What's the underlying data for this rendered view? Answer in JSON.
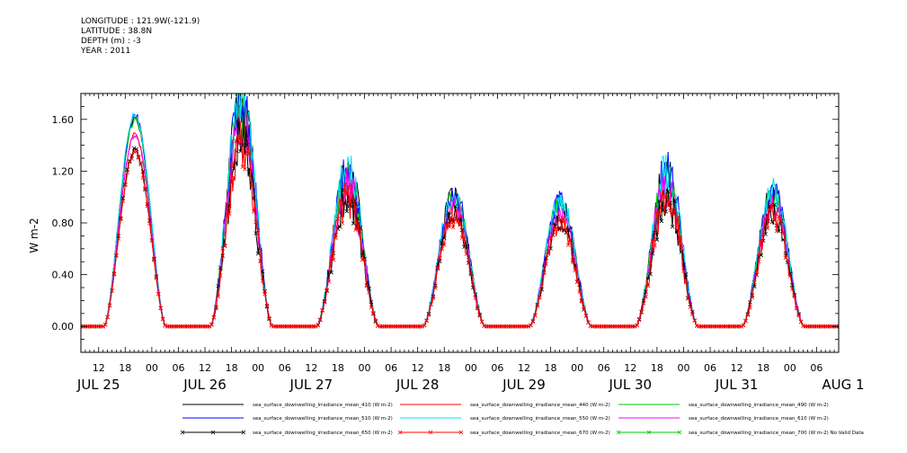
{
  "header": {
    "longitude": "LONGITUDE : 121.9W(-121.9)",
    "latitude": "LATITUDE : 38.8N",
    "depth": "DEPTH (m) : -3",
    "year": "YEAR : 2011"
  },
  "chart_data": {
    "type": "line",
    "title": "",
    "ylabel": "W m-2",
    "xlabel": "",
    "ylim": [
      -0.2,
      1.8
    ],
    "xlim": [
      "2011-07-25T08:00",
      "2011-08-01T11:00"
    ],
    "y_ticks": [
      "0.00",
      "0.40",
      "0.80",
      "1.20",
      "1.60"
    ],
    "y_tick_values": [
      0.0,
      0.4,
      0.8,
      1.2,
      1.6
    ],
    "x_hour_labels": [
      {
        "t": "2011-07-25T12:00",
        "label": "12"
      },
      {
        "t": "2011-07-25T18:00",
        "label": "18"
      },
      {
        "t": "2011-07-26T00:00",
        "label": "00"
      },
      {
        "t": "2011-07-26T06:00",
        "label": "06"
      },
      {
        "t": "2011-07-26T12:00",
        "label": "12"
      },
      {
        "t": "2011-07-26T18:00",
        "label": "18"
      },
      {
        "t": "2011-07-27T00:00",
        "label": "00"
      },
      {
        "t": "2011-07-27T06:00",
        "label": "06"
      },
      {
        "t": "2011-07-27T12:00",
        "label": "12"
      },
      {
        "t": "2011-07-27T18:00",
        "label": "18"
      },
      {
        "t": "2011-07-28T00:00",
        "label": "00"
      },
      {
        "t": "2011-07-28T06:00",
        "label": "06"
      },
      {
        "t": "2011-07-28T12:00",
        "label": "12"
      },
      {
        "t": "2011-07-28T18:00",
        "label": "18"
      },
      {
        "t": "2011-07-29T00:00",
        "label": "00"
      },
      {
        "t": "2011-07-29T06:00",
        "label": "06"
      },
      {
        "t": "2011-07-29T12:00",
        "label": "12"
      },
      {
        "t": "2011-07-29T18:00",
        "label": "18"
      },
      {
        "t": "2011-07-30T00:00",
        "label": "00"
      },
      {
        "t": "2011-07-30T06:00",
        "label": "06"
      },
      {
        "t": "2011-07-30T12:00",
        "label": "12"
      },
      {
        "t": "2011-07-30T18:00",
        "label": "18"
      },
      {
        "t": "2011-07-31T00:00",
        "label": "00"
      },
      {
        "t": "2011-07-31T06:00",
        "label": "06"
      },
      {
        "t": "2011-07-31T12:00",
        "label": "12"
      },
      {
        "t": "2011-07-31T18:00",
        "label": "18"
      },
      {
        "t": "2011-08-01T00:00",
        "label": "00"
      },
      {
        "t": "2011-08-01T06:00",
        "label": "06"
      }
    ],
    "x_day_labels": [
      {
        "t": "2011-07-25T12:00",
        "label": "JUL 25"
      },
      {
        "t": "2011-07-26T12:00",
        "label": "JUL 26"
      },
      {
        "t": "2011-07-27T12:00",
        "label": "JUL 27"
      },
      {
        "t": "2011-07-28T12:00",
        "label": "JUL 28"
      },
      {
        "t": "2011-07-29T12:00",
        "label": "JUL 29"
      },
      {
        "t": "2011-07-30T12:00",
        "label": "JUL 30"
      },
      {
        "t": "2011-07-31T12:00",
        "label": "JUL 31"
      },
      {
        "t": "2011-08-01T12:00",
        "label": "AUG 1"
      }
    ],
    "days": [
      "2011-07-25",
      "2011-07-26",
      "2011-07-27",
      "2011-07-28",
      "2011-07-29",
      "2011-07-30",
      "2011-07-31"
    ],
    "day_peaks_550nm": [
      1.64,
      1.72,
      1.2,
      1.03,
      0.97,
      1.18,
      1.04
    ],
    "day_noise": [
      0.01,
      0.09,
      0.09,
      0.06,
      0.06,
      0.1,
      0.07
    ],
    "series": [
      {
        "name": "sea_surface_downwelling_irradiance_mean_410 (W m-2)",
        "color": "#000000",
        "scale": 0.98,
        "marker": false
      },
      {
        "name": "sea_surface_downwelling_irradiance_mean_440 (W m-2)",
        "color": "#ff0000",
        "scale": 0.9,
        "marker": false
      },
      {
        "name": "sea_surface_downwelling_irradiance_mean_490 (W m-2)",
        "color": "#00c800",
        "scale": 0.97,
        "marker": false
      },
      {
        "name": "sea_surface_downwelling_irradiance_mean_510 (W m-2)",
        "color": "#0000ff",
        "scale": 0.995,
        "marker": false
      },
      {
        "name": "sea_surface_downwelling_irradiance_mean_550 (W m-2)",
        "color": "#00e5ee",
        "scale": 1.0,
        "marker": false
      },
      {
        "name": "sea_surface_downwelling_irradiance_mean_610 (W m-2)",
        "color": "#ff00ff",
        "scale": 0.9,
        "marker": false
      },
      {
        "name": "sea_surface_downwelling_irradiance_mean_650 (W m-2)",
        "color": "#000000",
        "scale": 0.83,
        "marker": true
      },
      {
        "name": "sea_surface_downwelling_irradiance_mean_670 (W m-2)",
        "color": "#ff0000",
        "scale": 0.82,
        "marker": true
      },
      {
        "name": "sea_surface_downwelling_irradiance_mean_700 (W m-2) No Valid Data",
        "color": "#00c800",
        "scale": null,
        "marker": true
      }
    ]
  }
}
